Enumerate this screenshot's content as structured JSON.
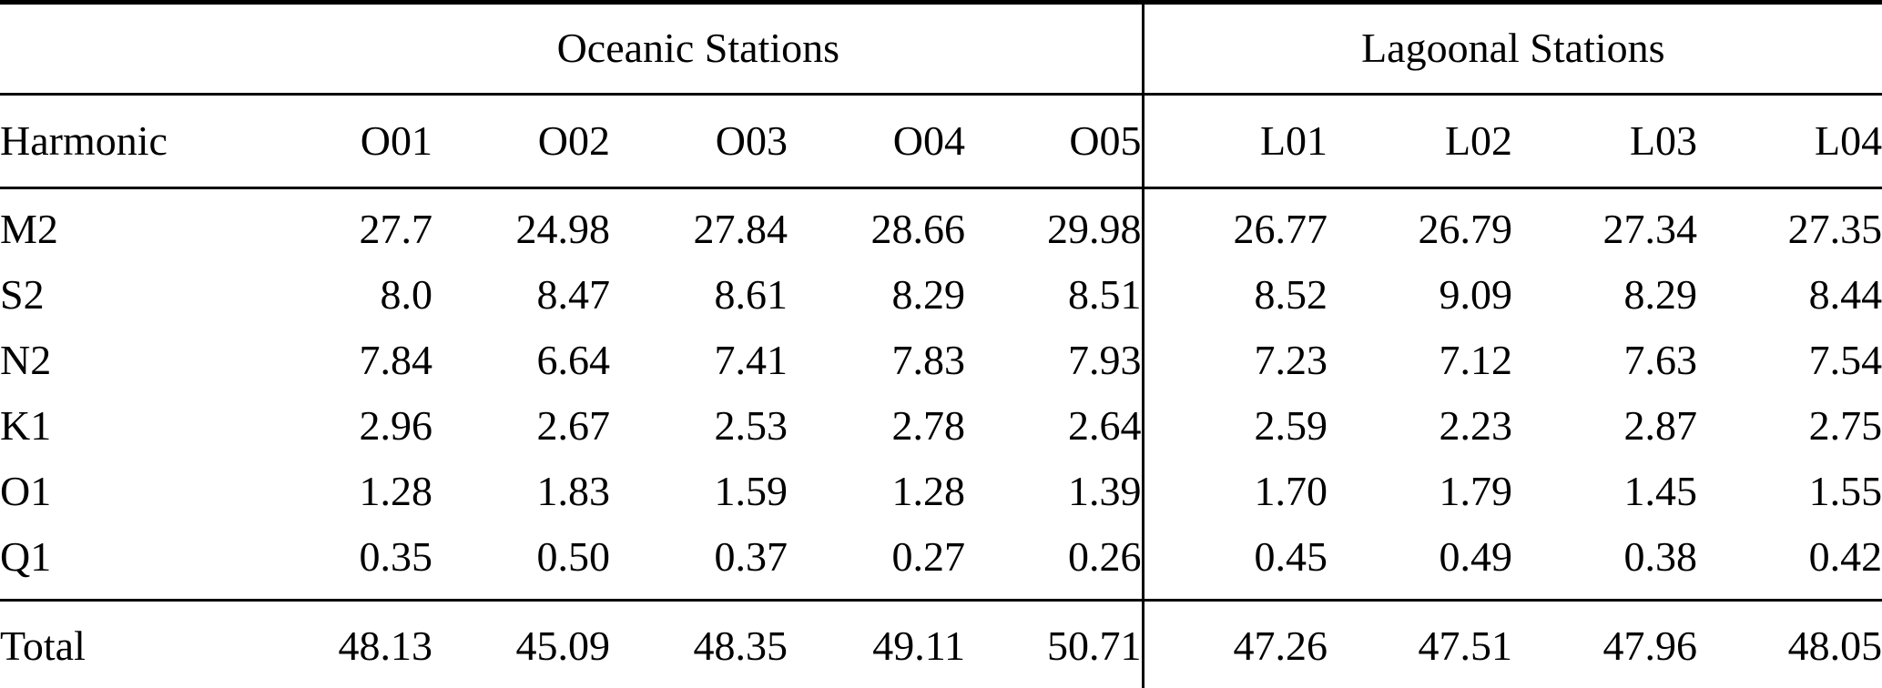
{
  "table": {
    "group_headers": [
      {
        "label": "Oceanic Stations",
        "span": 5
      },
      {
        "label": "Lagoonal Stations",
        "span": 4
      }
    ],
    "row_header_label": "Harmonic",
    "columns": [
      "O01",
      "O02",
      "O03",
      "O04",
      "O05",
      "L01",
      "L02",
      "L03",
      "L04"
    ],
    "rows": [
      {
        "label": "M2",
        "values": [
          "27.7",
          "24.98",
          "27.84",
          "28.66",
          "29.98",
          "26.77",
          "26.79",
          "27.34",
          "27.35"
        ]
      },
      {
        "label": "S2",
        "values": [
          "8.0",
          "8.47",
          "8.61",
          "8.29",
          "8.51",
          "8.52",
          "9.09",
          "8.29",
          "8.44"
        ]
      },
      {
        "label": "N2",
        "values": [
          "7.84",
          "6.64",
          "7.41",
          "7.83",
          "7.93",
          "7.23",
          "7.12",
          "7.63",
          "7.54"
        ]
      },
      {
        "label": "K1",
        "values": [
          "2.96",
          "2.67",
          "2.53",
          "2.78",
          "2.64",
          "2.59",
          "2.23",
          "2.87",
          "2.75"
        ]
      },
      {
        "label": "O1",
        "values": [
          "1.28",
          "1.83",
          "1.59",
          "1.28",
          "1.39",
          "1.70",
          "1.79",
          "1.45",
          "1.55"
        ]
      },
      {
        "label": "Q1",
        "values": [
          "0.35",
          "0.50",
          "0.37",
          "0.27",
          "0.26",
          "0.45",
          "0.49",
          "0.38",
          "0.42"
        ]
      }
    ],
    "total_row": {
      "label": "Total",
      "values": [
        "48.13",
        "45.09",
        "48.35",
        "49.11",
        "50.71",
        "47.26",
        "47.51",
        "47.96",
        "48.05"
      ]
    }
  }
}
